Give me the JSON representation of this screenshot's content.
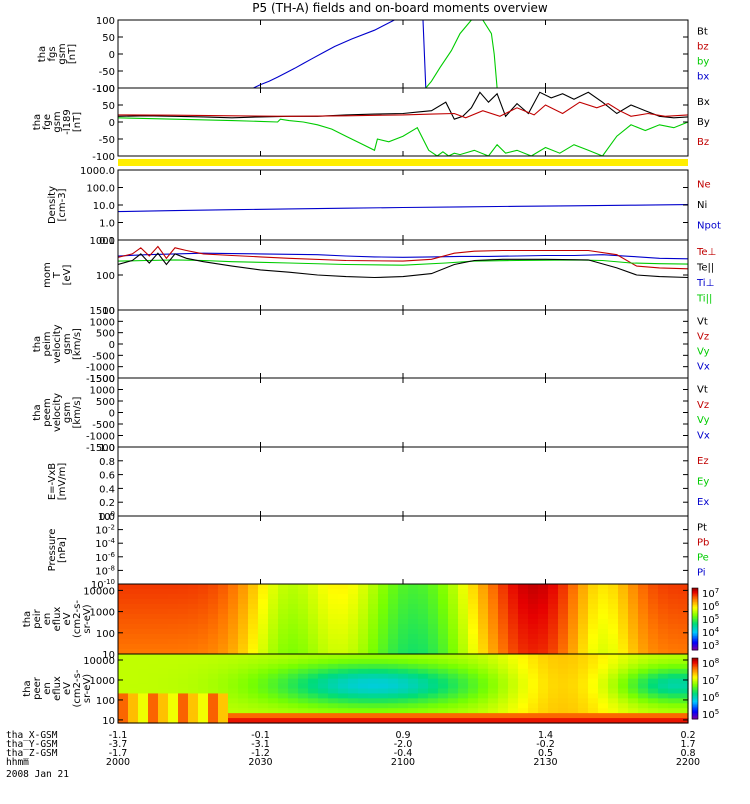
{
  "title": "P5 (TH-A) fields and on-board moments overview",
  "colors": {
    "black": "#000000",
    "red": "#c00000",
    "green": "#00cc00",
    "blue": "#0000cc",
    "yellow": "#ffee00"
  },
  "chart_data": {
    "type": "line",
    "x_axis": {
      "unit": "hhmm",
      "range": [
        "2000",
        "2200"
      ],
      "ticks": [
        "2000",
        "2030",
        "2100",
        "2130",
        "2200"
      ],
      "rows": [
        {
          "label": "tha_X-GSM",
          "values": [
            "-1.1",
            "-0.1",
            "0.9",
            "1.4",
            "0.2"
          ]
        },
        {
          "label": "tha_Y-GSM",
          "values": [
            "-3.7",
            "-3.1",
            "-2.0",
            "-0.2",
            "1.7"
          ]
        },
        {
          "label": "tha_Z-GSM",
          "values": [
            "-1.7",
            "-1.2",
            "-0.4",
            "0.5",
            "0.8"
          ]
        },
        {
          "label": "hhmm",
          "values": [
            "2000",
            "2030",
            "2100",
            "2130",
            "2200"
          ]
        }
      ],
      "date": "2008 Jan 21"
    },
    "panels": [
      {
        "id": "fgs",
        "ylabel": [
          "tha",
          "fgs",
          "gsm",
          "[nT]"
        ],
        "ylim": [
          -100,
          100
        ],
        "yticks": [
          "100",
          "50",
          "0",
          "-50",
          "-100"
        ],
        "legend": [
          {
            "name": "Bt",
            "color": "#000000"
          },
          {
            "name": "bz",
            "color": "#c00000"
          },
          {
            "name": "by",
            "color": "#00cc00"
          },
          {
            "name": "bx",
            "color": "#0000cc"
          }
        ],
        "series": [
          {
            "name": "bx",
            "color": "#0000cc",
            "x": [
              2047.5,
              2050,
              2053,
              2056,
              2059,
              2062,
              2065,
              2068,
              2072,
              2076,
              2082,
              2090,
              2097,
              2107,
              2108
            ],
            "y": [
              -100,
              -90,
              -80,
              -68,
              -55,
              -42,
              -28,
              -14,
              4,
              22,
              44,
              70,
              100,
              100,
              -100
            ]
          },
          {
            "name": "by",
            "color": "#00cc00",
            "x": [
              2108,
              2110,
              2113,
              2117,
              2120,
              2124,
              2128,
              2131,
              2132,
              2133
            ],
            "y": [
              -100,
              -80,
              -40,
              10,
              60,
              100,
              100,
              60,
              0,
              -100
            ]
          }
        ]
      },
      {
        "id": "fge",
        "ylabel": [
          "tha",
          "fge",
          "gsm",
          "-l189",
          "[nT]"
        ],
        "ylim": [
          -130,
          110
        ],
        "yticks": [
          "100",
          "50",
          "0",
          "-50",
          "-100"
        ],
        "legend": [
          {
            "name": "Bx",
            "color": "#000000"
          },
          {
            "name": "By",
            "color": "#000000"
          },
          {
            "name": "Bz",
            "color": "#c00000"
          }
        ],
        "series": [
          {
            "name": "Bx",
            "color": "#000000",
            "x": [
              2000,
              2010,
              2020,
              2030,
              2040,
              2050,
              2060,
              2070,
              2080,
              2090,
              2100,
              2105,
              2110,
              2115,
              2118,
              2121,
              2124,
              2127,
              2130,
              2133,
              2136,
              2140,
              2144,
              2148,
              2152,
              2156,
              2160,
              2165,
              2170,
              2175,
              2180,
              2185,
              2190,
              2195,
              2200
            ],
            "y": [
              10,
              12,
              10,
              8,
              5,
              8,
              10,
              10,
              15,
              18,
              20,
              25,
              30,
              60,
              0,
              10,
              40,
              95,
              60,
              90,
              10,
              55,
              20,
              95,
              75,
              90,
              70,
              95,
              60,
              20,
              50,
              30,
              10,
              5,
              8
            ]
          },
          {
            "name": "Bz",
            "color": "#c00000",
            "x": [
              2000,
              2020,
              2040,
              2060,
              2080,
              2100,
              2110,
              2118,
              2122,
              2128,
              2134,
              2140,
              2146,
              2150,
              2156,
              2162,
              2168,
              2172,
              2176,
              2180,
              2186,
              2192,
              2200
            ],
            "y": [
              15,
              14,
              12,
              10,
              12,
              15,
              18,
              20,
              5,
              30,
              10,
              40,
              15,
              50,
              20,
              60,
              40,
              55,
              30,
              10,
              20,
              10,
              15
            ]
          },
          {
            "name": "By",
            "color": "#00cc00",
            "x": [
              2000,
              2020,
              2040,
              2050,
              2056,
              2057,
              2060,
              2065,
              2070,
              2075,
              2080,
              2085,
              2090,
              2091,
              2095,
              2100,
              2105,
              2109,
              2112,
              2114,
              2116,
              2118,
              2120,
              2125,
              2130,
              2133,
              2136,
              2140,
              2145,
              2150,
              2155,
              2160,
              2165,
              2170,
              2175,
              2180,
              2185,
              2190,
              2195,
              2200
            ],
            "y": [
              5,
              0,
              -5,
              -8,
              -10,
              0,
              -5,
              -10,
              -20,
              -35,
              -60,
              -85,
              -110,
              -70,
              -80,
              -60,
              -30,
              -110,
              -130,
              -115,
              -130,
              -120,
              -125,
              -110,
              -130,
              -90,
              -120,
              -110,
              -130,
              -100,
              -120,
              -90,
              -110,
              -130,
              -60,
              -20,
              -40,
              -20,
              -30,
              -10
            ]
          }
        ]
      },
      {
        "id": "density",
        "ylabel": [
          "Density",
          "[cm-3]"
        ],
        "yscale": "log",
        "ylim": [
          0.1,
          1000
        ],
        "yticks": [
          "1000.0",
          "100.0",
          "10.0",
          "1.0",
          "0.1"
        ],
        "legend": [
          {
            "name": "Ne",
            "color": "#c00000"
          },
          {
            "name": "Ni",
            "color": "#000000"
          },
          {
            "name": "Npot",
            "color": "#0000cc"
          }
        ],
        "series": [
          {
            "name": "Npot",
            "color": "#0000cc",
            "x": [
              2000,
              2020,
              2040,
              2060,
              2080,
              2100,
              2120,
              2140,
              2160,
              2180,
              2200
            ],
            "y": [
              4.2,
              4.8,
              5.4,
              6.0,
              6.6,
              7.2,
              7.8,
              8.4,
              9.0,
              9.8,
              10.5
            ]
          }
        ]
      },
      {
        "id": "mom",
        "ylabel": [
          "mom",
          "T",
          "[eV]"
        ],
        "yscale": "log",
        "ylim": [
          10,
          1000
        ],
        "yticks": [
          "1000",
          "100",
          "10"
        ],
        "legend": [
          {
            "name": "Te⊥",
            "color": "#c00000"
          },
          {
            "name": "Te||",
            "color": "#000000"
          },
          {
            "name": "Ti⊥",
            "color": "#0000cc"
          },
          {
            "name": "Ti||",
            "color": "#00cc00"
          }
        ],
        "series": [
          {
            "name": "Ti⊥",
            "color": "#0000cc",
            "x": [
              2000,
              2010,
              2020,
              2030,
              2040,
              2050,
              2060,
              2070,
              2080,
              2090,
              2100,
              2110,
              2120,
              2130,
              2140,
              2150,
              2160,
              2170,
              2180,
              2190,
              2200
            ],
            "y": [
              350,
              380,
              400,
              420,
              410,
              400,
              390,
              380,
              350,
              330,
              320,
              330,
              340,
              340,
              350,
              360,
              360,
              380,
              340,
              300,
              290
            ]
          },
          {
            "name": "Te⊥",
            "color": "#c00000",
            "x": [
              2000,
              2005,
              2008,
              2011,
              2014,
              2017,
              2020,
              2024,
              2030,
              2040,
              2050,
              2060,
              2080,
              2100,
              2110,
              2118,
              2125,
              2135,
              2150,
              2165,
              2175,
              2182,
              2190,
              2200
            ],
            "y": [
              320,
              400,
              600,
              350,
              650,
              300,
              600,
              500,
              400,
              360,
              330,
              300,
              260,
              250,
              280,
              420,
              480,
              500,
              500,
              500,
              380,
              180,
              160,
              150
            ]
          },
          {
            "name": "Ti||",
            "color": "#00cc00",
            "x": [
              2000,
              2010,
              2020,
              2030,
              2040,
              2050,
              2060,
              2080,
              2100,
              2115,
              2125,
              2140,
              2160,
              2170,
              2180,
              2190,
              2200
            ],
            "y": [
              250,
              260,
              270,
              260,
              240,
              230,
              220,
              200,
              190,
              220,
              250,
              260,
              270,
              260,
              220,
              210,
              205
            ]
          },
          {
            "name": "Te||",
            "color": "#000000",
            "x": [
              2000,
              2005,
              2008,
              2011,
              2014,
              2017,
              2020,
              2024,
              2030,
              2040,
              2050,
              2060,
              2070,
              2080,
              2090,
              2100,
              2110,
              2118,
              2125,
              2135,
              2150,
              2165,
              2175,
              2182,
              2190,
              2200
            ],
            "y": [
              200,
              260,
              400,
              220,
              420,
              200,
              400,
              300,
              240,
              180,
              140,
              120,
              100,
              90,
              85,
              90,
              110,
              200,
              260,
              280,
              280,
              270,
              160,
              100,
              90,
              85
            ]
          }
        ]
      },
      {
        "id": "peim",
        "ylabel": [
          "tha",
          "peim",
          "velocity",
          "gsm",
          "[km/s]"
        ],
        "ylim": [
          -1500,
          1500
        ],
        "yticks": [
          "1500",
          "1000",
          "500",
          "0",
          "-500",
          "-1000",
          "-1500"
        ],
        "legend": [
          {
            "name": "Vt",
            "color": "#000000"
          },
          {
            "name": "Vz",
            "color": "#c00000"
          },
          {
            "name": "Vy",
            "color": "#00cc00"
          },
          {
            "name": "Vx",
            "color": "#0000cc"
          }
        ],
        "series": []
      },
      {
        "id": "peem",
        "ylabel": [
          "tha",
          "peem",
          "velocity",
          "gsm",
          "[km/s]"
        ],
        "ylim": [
          -1500,
          1500
        ],
        "yticks": [
          "1500",
          "1000",
          "500",
          "0",
          "-500",
          "-1000",
          "-1500"
        ],
        "legend": [
          {
            "name": "Vt",
            "color": "#000000"
          },
          {
            "name": "Vz",
            "color": "#c00000"
          },
          {
            "name": "Vy",
            "color": "#00cc00"
          },
          {
            "name": "Vx",
            "color": "#0000cc"
          }
        ],
        "series": []
      },
      {
        "id": "efield",
        "ylabel": [
          "E=-VxB",
          "[mV/m]"
        ],
        "ylim": [
          0,
          1
        ],
        "yticks": [
          "1.0",
          "0.8",
          "0.6",
          "0.4",
          "0.2",
          "0.0"
        ],
        "legend": [
          {
            "name": "Ez",
            "color": "#c00000"
          },
          {
            "name": "Ey",
            "color": "#00cc00"
          },
          {
            "name": "Ex",
            "color": "#0000cc"
          }
        ],
        "series": []
      },
      {
        "id": "pressure",
        "ylabel": [
          "Pressure",
          "[nPa]"
        ],
        "yscale": "log",
        "ylim": [
          1e-10,
          1
        ],
        "yticks": [
          "10^0",
          "10^-2",
          "10^-4",
          "10^-6",
          "10^-8",
          "10^-10"
        ],
        "legend": [
          {
            "name": "Pt",
            "color": "#000000"
          },
          {
            "name": "Pb",
            "color": "#c00000"
          },
          {
            "name": "Pe",
            "color": "#00cc00"
          },
          {
            "name": "Pi",
            "color": "#0000cc"
          }
        ],
        "series": []
      }
    ],
    "spectrograms": [
      {
        "id": "peir",
        "type": "heatmap",
        "ylabel": [
          "tha",
          "peir",
          "en",
          "eflux",
          "eV",
          "(cm2-s-",
          "sr-eV)"
        ],
        "yscale": "log",
        "ylim": [
          10,
          20000
        ],
        "yticks": [
          "10000",
          "1000",
          "100",
          "10"
        ],
        "colorbar_ticks": [
          "10^7",
          "10^6",
          "10^5",
          "10^4",
          "10^3"
        ]
      },
      {
        "id": "peer",
        "type": "heatmap",
        "ylabel": [
          "tha",
          "peer",
          "en",
          "eflux",
          "eV",
          "(cm2-s-",
          "sr-eV)"
        ],
        "yscale": "log",
        "ylim": [
          7,
          20000
        ],
        "yticks": [
          "10000",
          "1000",
          "100",
          "10"
        ],
        "colorbar_ticks": [
          "10^8",
          "10^7",
          "10^6",
          "10^5"
        ]
      }
    ]
  }
}
